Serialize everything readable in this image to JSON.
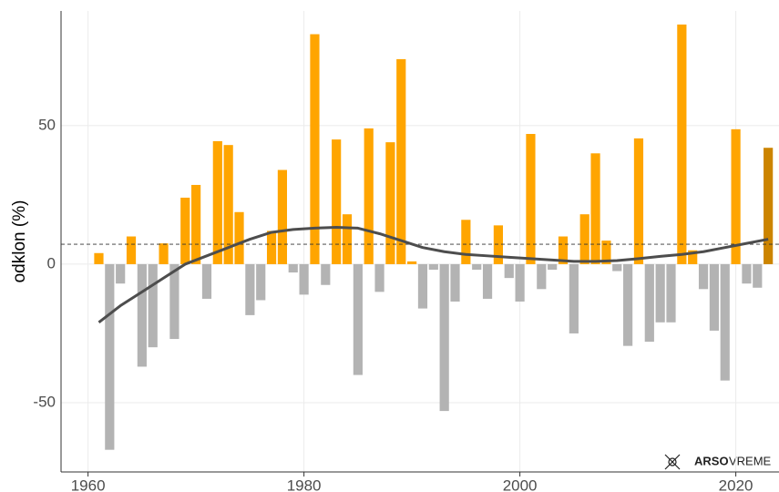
{
  "chart_data": {
    "type": "bar",
    "y_label": "odklon (%)",
    "xlim": [
      1957.5,
      2024
    ],
    "xticks": [
      1960,
      1980,
      2000,
      2020
    ],
    "ylim": [
      -75,
      91.4
    ],
    "yticks": [
      -50,
      0,
      50
    ],
    "grid": true,
    "hline": 7.2,
    "series": [
      {
        "name": "positive",
        "color": "#ffa500",
        "x": [
          1961,
          1964,
          1967,
          1969,
          1970,
          1972,
          1973,
          1974,
          1977,
          1978,
          1981,
          1983,
          1984,
          1986,
          1988,
          1989,
          1990,
          1995,
          1998,
          2001,
          2004,
          2006,
          2007,
          2008,
          2011,
          2015,
          2016,
          2020
        ],
        "values": [
          4,
          10,
          7.5,
          24,
          28.6,
          44.4,
          43,
          18.8,
          12,
          34,
          83,
          45,
          18,
          49,
          44,
          74,
          1,
          16,
          14,
          47,
          10,
          18,
          40,
          8.5,
          45.4,
          86.5,
          5,
          48.7
        ]
      },
      {
        "name": "negative",
        "color": "#b3b3b3",
        "x": [
          1962,
          1963,
          1965,
          1966,
          1968,
          1971,
          1975,
          1976,
          1979,
          1980,
          1982,
          1985,
          1987,
          1991,
          1992,
          1993,
          1994,
          1996,
          1997,
          1999,
          2000,
          2002,
          2003,
          2005,
          2009,
          2010,
          2012,
          2013,
          2014,
          2017,
          2018,
          2019,
          2021,
          2022
        ],
        "values": [
          -67,
          -7,
          -37,
          -30,
          -27,
          -12.5,
          -18.4,
          -13,
          -3,
          -11,
          -7.5,
          -40,
          -10,
          -16,
          -2,
          -53,
          -13.5,
          -2,
          -12.5,
          -5,
          -13.5,
          -9,
          -2,
          -25,
          -2.5,
          -29.5,
          -28,
          -21,
          -21,
          -9,
          -24,
          -42,
          -7,
          -8.5
        ]
      },
      {
        "name": "latest",
        "color": "#cc8400",
        "x": [
          2023
        ],
        "values": [
          42
        ]
      }
    ],
    "trend": {
      "color": "#4d4d4d",
      "x": [
        1961,
        1963,
        1965,
        1967,
        1969,
        1971,
        1973,
        1975,
        1977,
        1979,
        1981,
        1983,
        1985,
        1987,
        1989,
        1991,
        1993,
        1995,
        1997,
        1999,
        2001,
        2003,
        2005,
        2007,
        2009,
        2011,
        2013,
        2015,
        2017,
        2019,
        2021,
        2023
      ],
      "values": [
        -21,
        -15,
        -10,
        -5,
        0,
        3,
        6,
        9,
        11.5,
        12.5,
        13,
        13.3,
        13,
        11,
        8.5,
        6,
        4.5,
        3.5,
        3,
        2.5,
        2,
        1.5,
        1,
        1,
        1.3,
        2,
        2.8,
        3.5,
        4.5,
        6,
        7.5,
        9
      ]
    },
    "logo": {
      "bold": "ARSO",
      "text": "VREME"
    }
  }
}
